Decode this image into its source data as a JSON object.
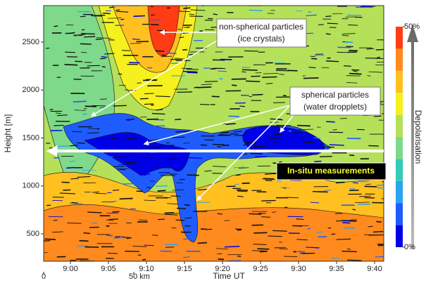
{
  "chart_data": {
    "type": "contour",
    "xlabel": "Time UT",
    "ylabel": "Height [m]",
    "xticks": [
      "9:00",
      "9:05",
      "9:10",
      "9:15",
      "9:20",
      "9:25",
      "9:30",
      "9:35",
      "9:40"
    ],
    "ylim": [
      215,
      2880
    ],
    "yticks": [
      500,
      1000,
      1500,
      2000,
      2500
    ],
    "distance_ticks": [
      {
        "value": 0,
        "label": "0"
      },
      {
        "value": 50,
        "label": "50 km"
      }
    ],
    "colorbar": {
      "label": "Depolarisation",
      "lim": [
        0,
        50
      ],
      "ticks": [
        {
          "value": 0,
          "label": "0%"
        },
        {
          "value": 50,
          "label": "50%"
        }
      ],
      "colors": [
        "#0000e6",
        "#1f5cff",
        "#2aa3f0",
        "#33ccb8",
        "#7fd98a",
        "#b5e05a",
        "#f5f01e",
        "#ffc020",
        "#ff8a1e",
        "#ff3c14"
      ]
    },
    "annotations": {
      "non_spherical": [
        "non-spherical particles",
        "(ice crystals)"
      ],
      "spherical": [
        "spherical particles",
        "(water dropplets)"
      ],
      "in_situ": "In-situ  measurements"
    }
  }
}
